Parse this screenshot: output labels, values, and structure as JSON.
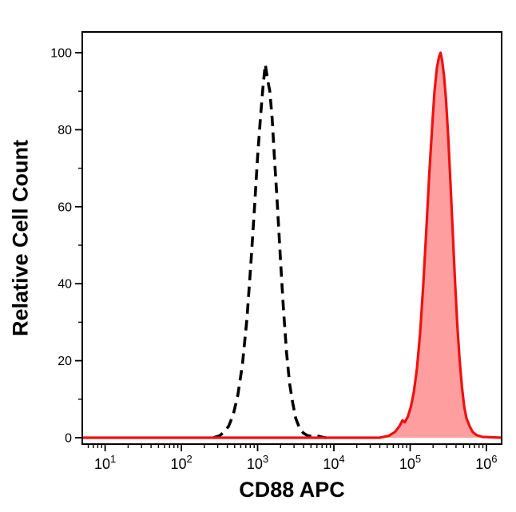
{
  "chart_data": {
    "type": "area",
    "subtype": "flow-cytometry-histogram-overlay",
    "title": "",
    "xlabel": "CD88 APC",
    "ylabel": "Relative Cell Count",
    "x_scale": "log10",
    "x_range_log": [
      0.7,
      6.2
    ],
    "ylim": [
      0,
      105
    ],
    "grid": false,
    "legend": "none",
    "axis_color": "#000000",
    "x_major_ticks": [
      {
        "base": "10",
        "exp": "1"
      },
      {
        "base": "10",
        "exp": "2"
      },
      {
        "base": "10",
        "exp": "3"
      },
      {
        "base": "10",
        "exp": "4"
      },
      {
        "base": "10",
        "exp": "5"
      },
      {
        "base": "10",
        "exp": "6"
      }
    ],
    "y_ticks": [
      "0",
      "20",
      "40",
      "60",
      "80",
      "100"
    ],
    "series": [
      {
        "name": "black-dashed-curve",
        "peak_x": 1300,
        "peak_y": 97,
        "stroke": "#000000",
        "stroke_width": 3.6,
        "dash": [
          13,
          8
        ],
        "fill": "none",
        "points_log10x_y": [
          [
            2.42,
            0
          ],
          [
            2.5,
            0.5
          ],
          [
            2.56,
            1.5
          ],
          [
            2.62,
            3
          ],
          [
            2.68,
            6
          ],
          [
            2.74,
            11
          ],
          [
            2.8,
            19
          ],
          [
            2.86,
            31
          ],
          [
            2.91,
            45
          ],
          [
            2.96,
            60
          ],
          [
            3.0,
            73
          ],
          [
            3.04,
            84
          ],
          [
            3.07,
            91
          ],
          [
            3.1,
            97
          ],
          [
            3.13,
            93
          ],
          [
            3.16,
            90
          ],
          [
            3.19,
            83
          ],
          [
            3.22,
            73
          ],
          [
            3.26,
            60
          ],
          [
            3.3,
            46
          ],
          [
            3.34,
            33
          ],
          [
            3.38,
            22
          ],
          [
            3.42,
            14
          ],
          [
            3.46,
            9
          ],
          [
            3.5,
            5
          ],
          [
            3.55,
            2.5
          ],
          [
            3.6,
            1.2
          ],
          [
            3.65,
            0.6
          ],
          [
            3.72,
            0.3
          ],
          [
            3.8,
            0.4
          ],
          [
            3.86,
            0.1
          ],
          [
            3.9,
            0
          ]
        ]
      },
      {
        "name": "red-filled-curve",
        "peak_x": 200000,
        "peak_y": 100,
        "stroke": "#ee1111",
        "stroke_width": 3.2,
        "dash": null,
        "fill": "#ff0000",
        "fill_opacity": 0.38,
        "points_log10x_y": [
          [
            0.7,
            0
          ],
          [
            4.6,
            0
          ],
          [
            4.72,
            0.5
          ],
          [
            4.8,
            1.5
          ],
          [
            4.86,
            3
          ],
          [
            4.9,
            4.5
          ],
          [
            4.93,
            4
          ],
          [
            4.97,
            5.5
          ],
          [
            5.01,
            8
          ],
          [
            5.05,
            12
          ],
          [
            5.09,
            18
          ],
          [
            5.13,
            27
          ],
          [
            5.17,
            39
          ],
          [
            5.21,
            53
          ],
          [
            5.25,
            68
          ],
          [
            5.29,
            81
          ],
          [
            5.32,
            90
          ],
          [
            5.35,
            96
          ],
          [
            5.38,
            99
          ],
          [
            5.4,
            100
          ],
          [
            5.42,
            98
          ],
          [
            5.445,
            94
          ],
          [
            5.47,
            88
          ],
          [
            5.5,
            78
          ],
          [
            5.53,
            66
          ],
          [
            5.56,
            53
          ],
          [
            5.59,
            40
          ],
          [
            5.62,
            29
          ],
          [
            5.65,
            20
          ],
          [
            5.68,
            13
          ],
          [
            5.71,
            8
          ],
          [
            5.74,
            5
          ],
          [
            5.78,
            3
          ],
          [
            5.82,
            1.5
          ],
          [
            5.87,
            0.7
          ],
          [
            5.95,
            0.2
          ],
          [
            6.2,
            0
          ]
        ]
      }
    ]
  }
}
